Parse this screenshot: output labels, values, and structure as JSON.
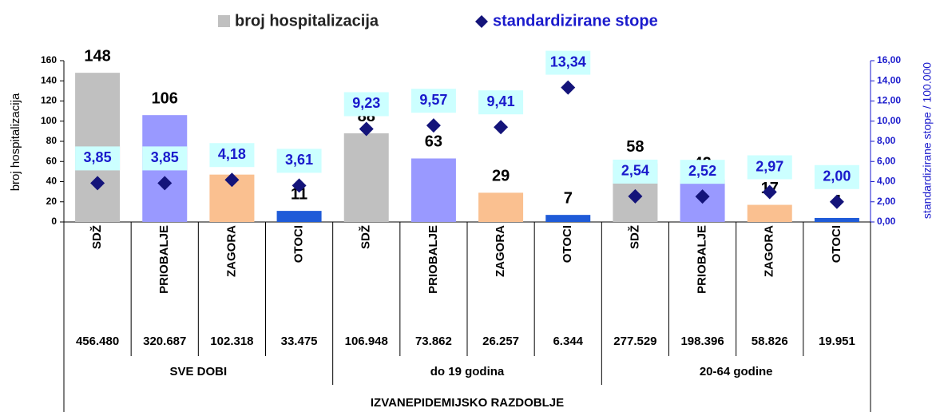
{
  "chart_data": {
    "type": "bar_diamond",
    "categories": [
      "SDŽ",
      "PRIOBALJE",
      "ZAGORA",
      "OTOCI",
      "SDŽ",
      "PRIOBALJE",
      "ZAGORA",
      "OTOCI",
      "SDŽ",
      "PRIOBALJE",
      "ZAGORA",
      "OTOCI"
    ],
    "populations": [
      "456.480",
      "320.687",
      "102.318",
      "33.475",
      "106.948",
      "73.862",
      "26.257",
      "6.344",
      "277.529",
      "198.396",
      "58.826",
      "19.951"
    ],
    "groups": [
      "SVE DOBI",
      "do 19 godina",
      "20-64 godine"
    ],
    "period": "IZVANEPIDEMIJSKO RAZDOBLJE",
    "series": [
      {
        "name": "broj hospitalizacija",
        "color": "#c0c0c0",
        "colors": [
          "#c0c0c0",
          "#9999ff",
          "#fac090",
          "#1f5bd8",
          "#c0c0c0",
          "#9999ff",
          "#fac090",
          "#1f5bd8",
          "#c0c0c0",
          "#9999ff",
          "#fac090",
          "#1f5bd8"
        ],
        "values": [
          148,
          106,
          47,
          11,
          88,
          63,
          29,
          7,
          58,
          42,
          17,
          4
        ]
      },
      {
        "name": "standardizirane stope",
        "color": "#14147a",
        "axis": "y2",
        "values": [
          3.85,
          3.85,
          4.18,
          3.61,
          9.23,
          9.57,
          9.41,
          13.34,
          2.54,
          2.52,
          2.97,
          2.0
        ],
        "value_labels": [
          "3,85",
          "3,85",
          "4,18",
          "3,61",
          "9,23",
          "9,57",
          "9,41",
          "13,34",
          "2,54",
          "2,52",
          "2,97",
          "2,00"
        ]
      }
    ],
    "ylabel": "broj hospitalizacija",
    "y2label": "standardizirane stope / 100.000",
    "ylim": [
      0,
      160
    ],
    "yticks": [
      0,
      20,
      40,
      60,
      80,
      100,
      120,
      140,
      160
    ],
    "y2lim": [
      0,
      16
    ],
    "y2ticks": [
      {
        "value": 0,
        "label": "0,00"
      },
      {
        "value": 2,
        "label": "2,00"
      },
      {
        "value": 4,
        "label": "4,00"
      },
      {
        "value": 6,
        "label": "6,00"
      },
      {
        "value": 8,
        "label": "8,00"
      },
      {
        "value": 10,
        "label": "10,00"
      },
      {
        "value": 12,
        "label": "12,00"
      },
      {
        "value": 14,
        "label": "14,00"
      },
      {
        "value": 16,
        "label": "16,00"
      }
    ]
  }
}
